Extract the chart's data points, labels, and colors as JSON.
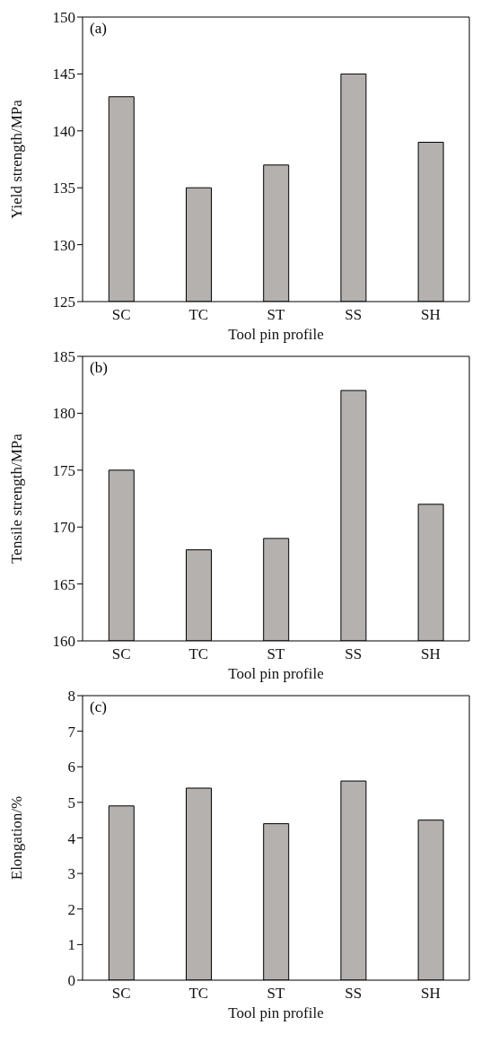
{
  "chart_data": [
    {
      "type": "bar",
      "categories": [
        "SC",
        "TC",
        "ST",
        "SS",
        "SH"
      ],
      "values": [
        143,
        135,
        137,
        145,
        139
      ],
      "color": "#b5b1ae",
      "ylim": [
        125,
        150
      ],
      "yticks": [
        125,
        130,
        135,
        140,
        145,
        150
      ],
      "xlabel": "Tool pin profile",
      "ylabel": "Yield strength/MPa",
      "annotations": [
        "(a)"
      ],
      "grid": false,
      "legend": false
    },
    {
      "type": "bar",
      "categories": [
        "SC",
        "TC",
        "ST",
        "SS",
        "SH"
      ],
      "values": [
        175,
        168,
        169,
        182,
        172
      ],
      "color": "#b5b1ae",
      "ylim": [
        160,
        185
      ],
      "yticks": [
        160,
        165,
        170,
        175,
        180,
        185
      ],
      "xlabel": "Tool pin profile",
      "ylabel": "Tensile strength/MPa",
      "annotations": [
        "(b)"
      ],
      "grid": false,
      "legend": false
    },
    {
      "type": "bar",
      "categories": [
        "SC",
        "TC",
        "ST",
        "SS",
        "SH"
      ],
      "values": [
        4.9,
        5.4,
        4.4,
        5.6,
        4.5
      ],
      "color": "#b5b1ae",
      "ylim": [
        0,
        8
      ],
      "yticks": [
        0,
        1,
        2,
        3,
        4,
        5,
        6,
        7,
        8
      ],
      "xlabel": "Tool pin profile",
      "ylabel": "Elongation/%",
      "annotations": [
        "(c)"
      ],
      "grid": false,
      "legend": false
    }
  ]
}
